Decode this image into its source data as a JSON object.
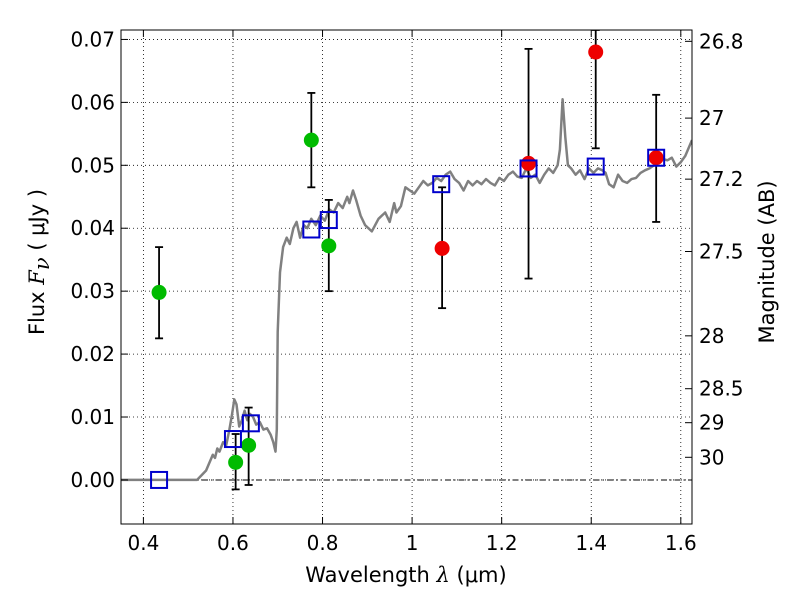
{
  "chart_data": {
    "type": "scatter",
    "xlabel": {
      "prefix": "Wavelength  ",
      "symbol": "λ",
      "unit": " (μm)"
    },
    "ylabel": {
      "prefix": "Flux  ",
      "symbol": "F",
      "subscript": "ν",
      "unit": "  ( μJy )"
    },
    "y2label": "Magnitude (AB)",
    "xlim": [
      0.35,
      1.625
    ],
    "ylim": [
      -0.007,
      0.0715
    ],
    "grid": true,
    "x_ticks": [
      {
        "value": 0.4,
        "label": "0.4"
      },
      {
        "value": 0.6,
        "label": "0.6"
      },
      {
        "value": 0.8,
        "label": "0.8"
      },
      {
        "value": 1.0,
        "label": "1"
      },
      {
        "value": 1.2,
        "label": "1.2"
      },
      {
        "value": 1.4,
        "label": "1.4"
      },
      {
        "value": 1.6,
        "label": "1.6"
      }
    ],
    "y_ticks": [
      {
        "value": 0.0,
        "label": "0.00"
      },
      {
        "value": 0.01,
        "label": "0.01"
      },
      {
        "value": 0.02,
        "label": "0.02"
      },
      {
        "value": 0.03,
        "label": "0.03"
      },
      {
        "value": 0.04,
        "label": "0.04"
      },
      {
        "value": 0.05,
        "label": "0.05"
      },
      {
        "value": 0.06,
        "label": "0.06"
      },
      {
        "value": 0.07,
        "label": "0.07"
      }
    ],
    "y2_ticks": [
      {
        "flux": 0.0697,
        "label": "26.8"
      },
      {
        "flux": 0.0575,
        "label": "27"
      },
      {
        "flux": 0.0478,
        "label": "27.2"
      },
      {
        "flux": 0.0363,
        "label": "27.5"
      },
      {
        "flux": 0.0229,
        "label": "28"
      },
      {
        "flux": 0.0145,
        "label": "28.5"
      },
      {
        "flux": 0.0091,
        "label": "29"
      },
      {
        "flux": 0.0036,
        "label": "30"
      }
    ],
    "model_spectrum": {
      "color": "#808080",
      "points": [
        [
          0.35,
          0.0
        ],
        [
          0.52,
          0.0
        ],
        [
          0.54,
          0.0015
        ],
        [
          0.555,
          0.004
        ],
        [
          0.56,
          0.0035
        ],
        [
          0.565,
          0.005
        ],
        [
          0.57,
          0.0045
        ],
        [
          0.578,
          0.006
        ],
        [
          0.585,
          0.0055
        ],
        [
          0.592,
          0.008
        ],
        [
          0.598,
          0.0105
        ],
        [
          0.603,
          0.0128
        ],
        [
          0.608,
          0.012
        ],
        [
          0.614,
          0.0085
        ],
        [
          0.62,
          0.0095
        ],
        [
          0.626,
          0.011
        ],
        [
          0.632,
          0.0095
        ],
        [
          0.638,
          0.0105
        ],
        [
          0.645,
          0.01
        ],
        [
          0.652,
          0.0088
        ],
        [
          0.66,
          0.0092
        ],
        [
          0.668,
          0.008
        ],
        [
          0.676,
          0.0082
        ],
        [
          0.684,
          0.0072
        ],
        [
          0.69,
          0.006
        ],
        [
          0.695,
          0.0045
        ],
        [
          0.698,
          0.008
        ],
        [
          0.7,
          0.0235
        ],
        [
          0.705,
          0.033
        ],
        [
          0.712,
          0.037
        ],
        [
          0.72,
          0.0385
        ],
        [
          0.727,
          0.0375
        ],
        [
          0.735,
          0.04
        ],
        [
          0.742,
          0.041
        ],
        [
          0.75,
          0.0385
        ],
        [
          0.758,
          0.0405
        ],
        [
          0.766,
          0.04
        ],
        [
          0.775,
          0.0415
        ],
        [
          0.785,
          0.0405
        ],
        [
          0.795,
          0.042
        ],
        [
          0.805,
          0.0412
        ],
        [
          0.815,
          0.043
        ],
        [
          0.825,
          0.0425
        ],
        [
          0.835,
          0.044
        ],
        [
          0.845,
          0.0432
        ],
        [
          0.855,
          0.045
        ],
        [
          0.86,
          0.044
        ],
        [
          0.868,
          0.046
        ],
        [
          0.875,
          0.0445
        ],
        [
          0.885,
          0.042
        ],
        [
          0.895,
          0.0405
        ],
        [
          0.91,
          0.0395
        ],
        [
          0.925,
          0.0415
        ],
        [
          0.94,
          0.0425
        ],
        [
          0.95,
          0.041
        ],
        [
          0.96,
          0.044
        ],
        [
          0.965,
          0.0425
        ],
        [
          0.975,
          0.0435
        ],
        [
          0.985,
          0.0465
        ],
        [
          0.995,
          0.046
        ],
        [
          1.005,
          0.0455
        ],
        [
          1.015,
          0.0465
        ],
        [
          1.025,
          0.0475
        ],
        [
          1.035,
          0.0468
        ],
        [
          1.045,
          0.0472
        ],
        [
          1.055,
          0.048
        ],
        [
          1.065,
          0.0475
        ],
        [
          1.075,
          0.0485
        ],
        [
          1.085,
          0.049
        ],
        [
          1.095,
          0.0478
        ],
        [
          1.105,
          0.0472
        ],
        [
          1.115,
          0.046
        ],
        [
          1.125,
          0.0475
        ],
        [
          1.135,
          0.0468
        ],
        [
          1.145,
          0.0475
        ],
        [
          1.155,
          0.047
        ],
        [
          1.165,
          0.0478
        ],
        [
          1.175,
          0.0472
        ],
        [
          1.185,
          0.0468
        ],
        [
          1.195,
          0.048
        ],
        [
          1.205,
          0.0475
        ],
        [
          1.215,
          0.0485
        ],
        [
          1.225,
          0.049
        ],
        [
          1.235,
          0.0482
        ],
        [
          1.245,
          0.048
        ],
        [
          1.255,
          0.0495
        ],
        [
          1.265,
          0.048
        ],
        [
          1.275,
          0.0485
        ],
        [
          1.285,
          0.0472
        ],
        [
          1.295,
          0.0485
        ],
        [
          1.305,
          0.0495
        ],
        [
          1.315,
          0.0488
        ],
        [
          1.325,
          0.05
        ],
        [
          1.33,
          0.0525
        ],
        [
          1.336,
          0.0605
        ],
        [
          1.342,
          0.0545
        ],
        [
          1.348,
          0.05
        ],
        [
          1.355,
          0.0495
        ],
        [
          1.365,
          0.0485
        ],
        [
          1.375,
          0.0492
        ],
        [
          1.385,
          0.0478
        ],
        [
          1.395,
          0.0495
        ],
        [
          1.405,
          0.0488
        ],
        [
          1.415,
          0.0495
        ],
        [
          1.425,
          0.0492
        ],
        [
          1.432,
          0.0488
        ],
        [
          1.44,
          0.047
        ],
        [
          1.45,
          0.0465
        ],
        [
          1.46,
          0.0485
        ],
        [
          1.47,
          0.0475
        ],
        [
          1.48,
          0.0472
        ],
        [
          1.49,
          0.0478
        ],
        [
          1.5,
          0.048
        ],
        [
          1.51,
          0.0488
        ],
        [
          1.52,
          0.0492
        ],
        [
          1.53,
          0.0495
        ],
        [
          1.54,
          0.05
        ],
        [
          1.55,
          0.0505
        ],
        [
          1.56,
          0.051
        ],
        [
          1.57,
          0.0508
        ],
        [
          1.58,
          0.0512
        ],
        [
          1.59,
          0.0498
        ],
        [
          1.6,
          0.0505
        ],
        [
          1.61,
          0.0515
        ],
        [
          1.625,
          0.054
        ]
      ]
    },
    "model_photometry": {
      "marker": "open-square",
      "color": "#0000cc",
      "points": [
        {
          "x": 0.435,
          "y": 0.0
        },
        {
          "x": 0.6,
          "y": 0.0065
        },
        {
          "x": 0.64,
          "y": 0.009
        },
        {
          "x": 0.775,
          "y": 0.0398
        },
        {
          "x": 0.814,
          "y": 0.0413
        },
        {
          "x": 1.065,
          "y": 0.047
        },
        {
          "x": 1.26,
          "y": 0.0495
        },
        {
          "x": 1.41,
          "y": 0.0498
        },
        {
          "x": 1.545,
          "y": 0.0512
        }
      ]
    },
    "observed_hst_optical": {
      "marker": "filled-circle",
      "color": "#00bb00",
      "points": [
        {
          "x": 0.435,
          "y": 0.0298,
          "ylo": 0.0225,
          "yhi": 0.037
        },
        {
          "x": 0.606,
          "y": 0.0028,
          "ylo": -0.0015,
          "yhi": 0.0073
        },
        {
          "x": 0.635,
          "y": 0.0055,
          "ylo": -0.0008,
          "yhi": 0.0115
        },
        {
          "x": 0.775,
          "y": 0.054,
          "ylo": 0.0465,
          "yhi": 0.0615
        },
        {
          "x": 0.814,
          "y": 0.0372,
          "ylo": 0.03,
          "yhi": 0.0445
        }
      ]
    },
    "observed_hst_nir": {
      "marker": "filled-circle",
      "color": "#ee0000",
      "points": [
        {
          "x": 1.067,
          "y": 0.0368,
          "ylo": 0.0273,
          "yhi": 0.0465
        },
        {
          "x": 1.26,
          "y": 0.0503,
          "ylo": 0.032,
          "yhi": 0.0685
        },
        {
          "x": 1.41,
          "y": 0.068,
          "ylo": 0.0527,
          "yhi": 0.0715
        },
        {
          "x": 1.545,
          "y": 0.0512,
          "ylo": 0.041,
          "yhi": 0.0612
        }
      ]
    }
  }
}
